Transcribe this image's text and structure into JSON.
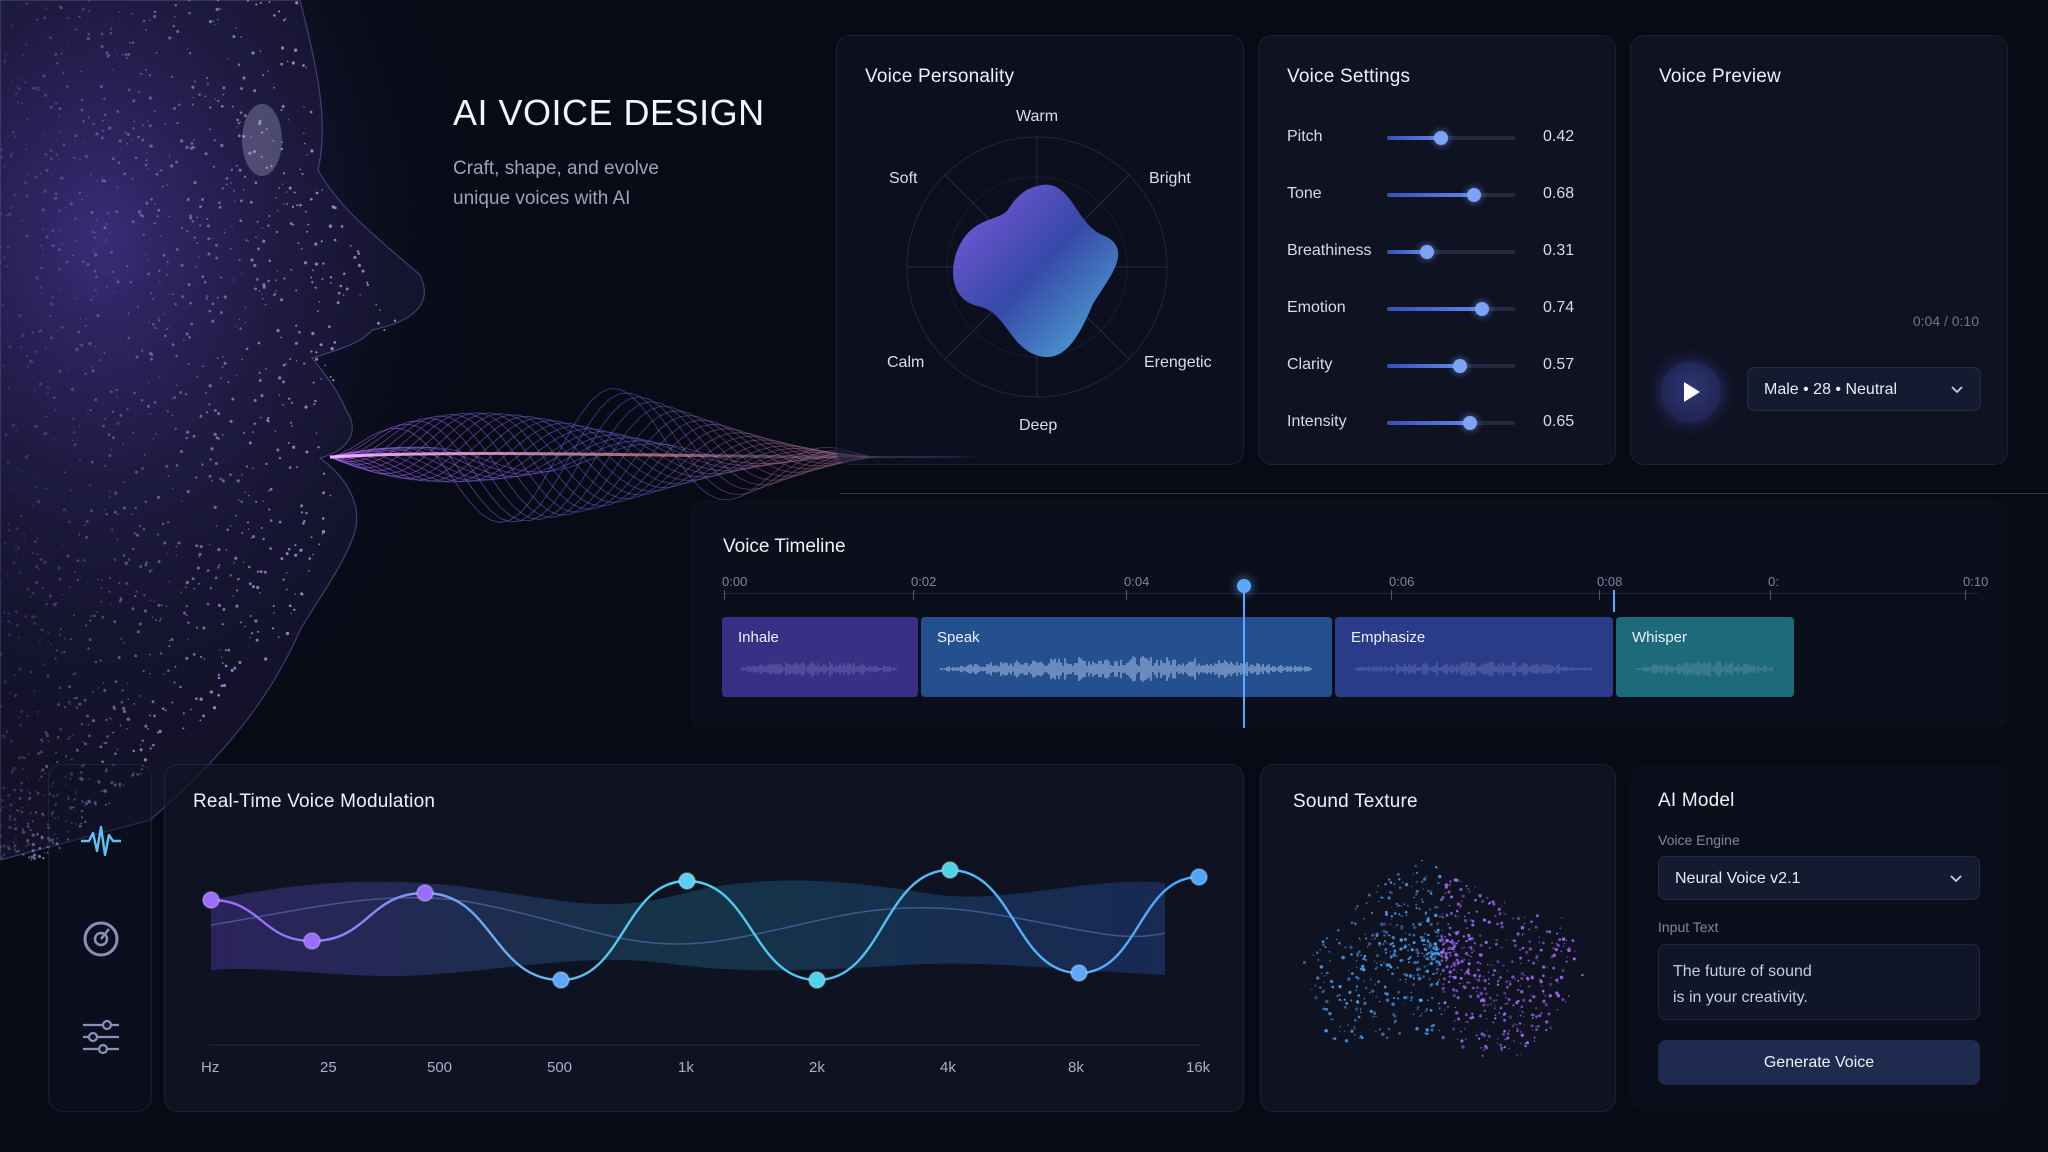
{
  "hero": {
    "title": "AI VOICE DESIGN",
    "subtitle_line1": "Craft, shape, and evolve",
    "subtitle_line2": "unique voices with AI"
  },
  "personality": {
    "title": "Voice Personality",
    "axes": [
      "Warm",
      "Bright",
      "Erengetic",
      "Deep",
      "Calm",
      "Soft"
    ]
  },
  "settings": {
    "title": "Voice Settings",
    "items": [
      {
        "label": "Pitch",
        "value": "0.42",
        "level": 0.42
      },
      {
        "label": "Tone",
        "value": "0.68",
        "level": 0.68
      },
      {
        "label": "Breathiness",
        "value": "0.31",
        "level": 0.31
      },
      {
        "label": "Emotion",
        "value": "0.74",
        "level": 0.74
      },
      {
        "label": "Clarity",
        "value": "0.57",
        "level": 0.57
      },
      {
        "label": "Intensity",
        "value": "0.65",
        "level": 0.65
      }
    ]
  },
  "preview": {
    "title": "Voice Preview",
    "time": "0:04 / 0:10",
    "voice_select": "Male • 28 • Neutral",
    "play_icon": "play-icon"
  },
  "timeline": {
    "title": "Voice Timeline",
    "ticks": [
      "0:00",
      "0:02",
      "0:04",
      "0:06",
      "0:08",
      "0:",
      "0:10"
    ],
    "playhead_time": "0:04",
    "segments": [
      {
        "label": "Inhale",
        "color": "#3a2f86"
      },
      {
        "label": "Speak",
        "color": "#24508f"
      },
      {
        "label": "Emphasize",
        "color": "#2a3b8a"
      },
      {
        "label": "Whisper",
        "color": "#1c6a7a"
      }
    ]
  },
  "sidebar": {
    "icons": [
      "waveform-icon",
      "dial-icon",
      "sliders-icon"
    ]
  },
  "modulation": {
    "title": "Real-Time Voice Modulation",
    "freq_labels": [
      "Hz",
      "25",
      "500",
      "500",
      "1k",
      "2k",
      "4k",
      "8k",
      "16k"
    ]
  },
  "texture": {
    "title": "Sound Texture"
  },
  "ai_model": {
    "title": "AI Model",
    "engine_label": "Voice Engine",
    "engine_value": "Neural Voice v2.1",
    "input_label": "Input Text",
    "input_line1": "The future of sound",
    "input_line2": "is in your creativity.",
    "button": "Generate Voice"
  },
  "colors": {
    "background": "#080b16",
    "accent_purple": "#8a5cf6",
    "accent_blue": "#4fa6ff",
    "accent_cyan": "#4fd3e6"
  }
}
